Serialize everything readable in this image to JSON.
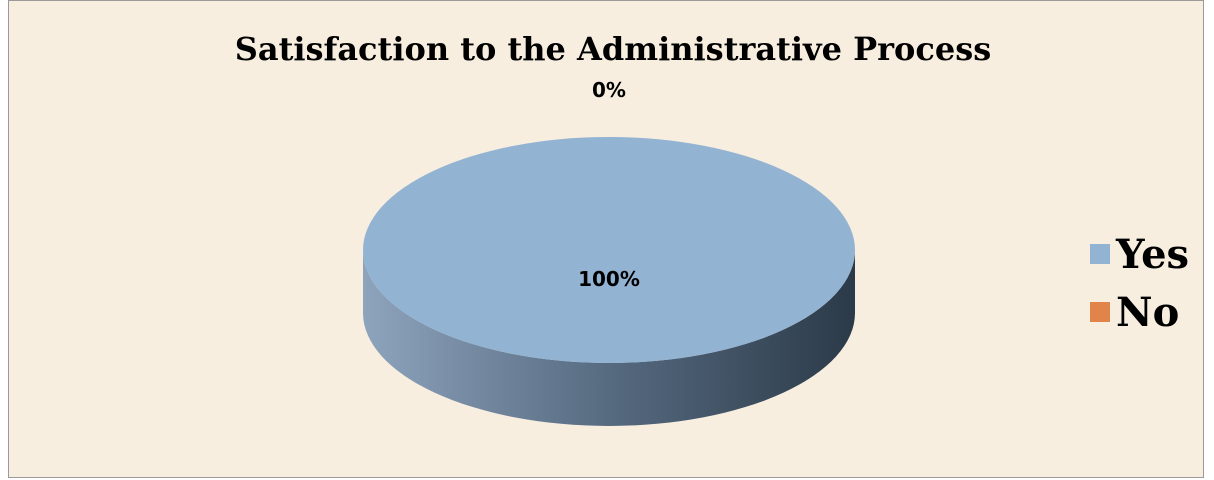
{
  "chart_data": {
    "type": "pie",
    "title": "Satisfaction to the Administrative Process",
    "categories": [
      "Yes",
      "No"
    ],
    "values": [
      100,
      0
    ],
    "data_labels": [
      "100%",
      "0%"
    ],
    "colors": [
      "#93b3d3",
      "#e0844a"
    ],
    "legend_position": "right",
    "style": "3d"
  }
}
